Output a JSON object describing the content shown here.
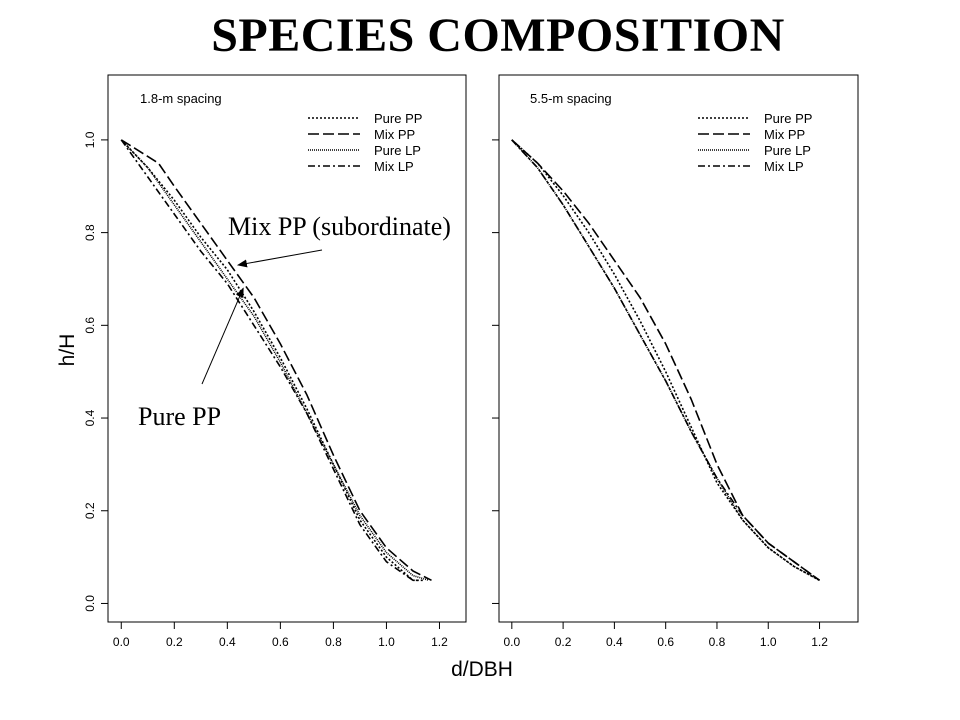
{
  "title": "SPECIES COMPOSITION",
  "chart_data": [
    {
      "type": "line",
      "title": "1.8-m spacing",
      "xlabel": "d/DBH",
      "ylabel": "h/H",
      "xlim": [
        -0.05,
        1.3
      ],
      "ylim": [
        -0.04,
        1.14
      ],
      "xticks": [
        "0.0",
        "0.2",
        "0.4",
        "0.6",
        "0.8",
        "1.0",
        "1.2"
      ],
      "yticks": [
        "0.0",
        "0.2",
        "0.4",
        "0.6",
        "0.8",
        "1.0"
      ],
      "grid": false,
      "legend_position": "top-right",
      "series": [
        {
          "name": "Pure PP",
          "dash": "2,2",
          "x": [
            0.0,
            0.1,
            0.2,
            0.3,
            0.4,
            0.5,
            0.6,
            0.7,
            0.8,
            0.9,
            1.0,
            1.1,
            1.14
          ],
          "y": [
            1.0,
            0.94,
            0.87,
            0.79,
            0.72,
            0.63,
            0.53,
            0.42,
            0.3,
            0.18,
            0.1,
            0.05,
            0.05
          ]
        },
        {
          "name": "Mix PP",
          "dash": "11,4",
          "x": [
            0.0,
            0.14,
            0.2,
            0.3,
            0.4,
            0.5,
            0.6,
            0.7,
            0.8,
            0.9,
            1.0,
            1.1,
            1.17
          ],
          "y": [
            1.0,
            0.95,
            0.9,
            0.82,
            0.74,
            0.66,
            0.56,
            0.45,
            0.32,
            0.2,
            0.12,
            0.07,
            0.05
          ]
        },
        {
          "name": "Pure LP",
          "dash": "1,1",
          "x": [
            0.0,
            0.1,
            0.2,
            0.3,
            0.4,
            0.5,
            0.6,
            0.7,
            0.8,
            0.9,
            1.0,
            1.1,
            1.16
          ],
          "y": [
            1.0,
            0.94,
            0.86,
            0.78,
            0.7,
            0.62,
            0.52,
            0.41,
            0.3,
            0.19,
            0.11,
            0.06,
            0.05
          ]
        },
        {
          "name": "Mix LP",
          "dash": "7,3,2,3",
          "x": [
            0.0,
            0.1,
            0.2,
            0.3,
            0.4,
            0.5,
            0.6,
            0.7,
            0.8,
            0.9,
            1.0,
            1.1,
            1.12
          ],
          "y": [
            1.0,
            0.92,
            0.84,
            0.76,
            0.69,
            0.6,
            0.51,
            0.41,
            0.29,
            0.17,
            0.09,
            0.05,
            0.05
          ]
        }
      ],
      "annotations": [
        {
          "text": "Mix PP (subordinate)",
          "points_to": {
            "x": 0.44,
            "y": 0.73
          }
        },
        {
          "text": "Pure PP",
          "points_to": {
            "x": 0.46,
            "y": 0.68
          }
        }
      ]
    },
    {
      "type": "line",
      "title": "5.5-m spacing",
      "xlabel": "d/DBH",
      "ylabel": "h/H",
      "xlim": [
        -0.05,
        1.35
      ],
      "ylim": [
        -0.04,
        1.14
      ],
      "xticks": [
        "0.0",
        "0.2",
        "0.4",
        "0.6",
        "0.8",
        "1.0",
        "1.2"
      ],
      "yticks": [
        "0.0",
        "0.2",
        "0.4",
        "0.6",
        "0.8",
        "1.0"
      ],
      "grid": false,
      "legend_position": "top-right",
      "series": [
        {
          "name": "Pure PP",
          "dash": "2,2",
          "x": [
            0.0,
            0.1,
            0.2,
            0.3,
            0.4,
            0.5,
            0.6,
            0.7,
            0.8,
            0.9,
            1.0,
            1.1,
            1.2
          ],
          "y": [
            1.0,
            0.95,
            0.88,
            0.8,
            0.71,
            0.61,
            0.5,
            0.38,
            0.26,
            0.18,
            0.12,
            0.08,
            0.05
          ]
        },
        {
          "name": "Mix PP",
          "dash": "11,4",
          "x": [
            0.0,
            0.1,
            0.2,
            0.3,
            0.4,
            0.5,
            0.6,
            0.7,
            0.8,
            0.9,
            1.0,
            1.1,
            1.2
          ],
          "y": [
            1.0,
            0.95,
            0.89,
            0.82,
            0.74,
            0.66,
            0.56,
            0.44,
            0.3,
            0.19,
            0.13,
            0.09,
            0.05
          ]
        },
        {
          "name": "Pure LP",
          "dash": "1,1",
          "x": [
            0.0,
            0.1,
            0.2,
            0.3,
            0.4,
            0.5,
            0.6,
            0.7,
            0.8,
            0.9,
            1.0,
            1.1,
            1.2
          ],
          "y": [
            1.0,
            0.94,
            0.86,
            0.77,
            0.68,
            0.58,
            0.48,
            0.37,
            0.27,
            0.18,
            0.12,
            0.08,
            0.05
          ]
        },
        {
          "name": "Mix LP",
          "dash": "7,3,2,3",
          "x": [
            0.0,
            0.1,
            0.2,
            0.3,
            0.4,
            0.5,
            0.6,
            0.7,
            0.8,
            0.9,
            1.0,
            1.1,
            1.2
          ],
          "y": [
            1.0,
            0.94,
            0.86,
            0.77,
            0.68,
            0.58,
            0.48,
            0.37,
            0.27,
            0.19,
            0.13,
            0.09,
            0.05
          ]
        }
      ]
    }
  ]
}
